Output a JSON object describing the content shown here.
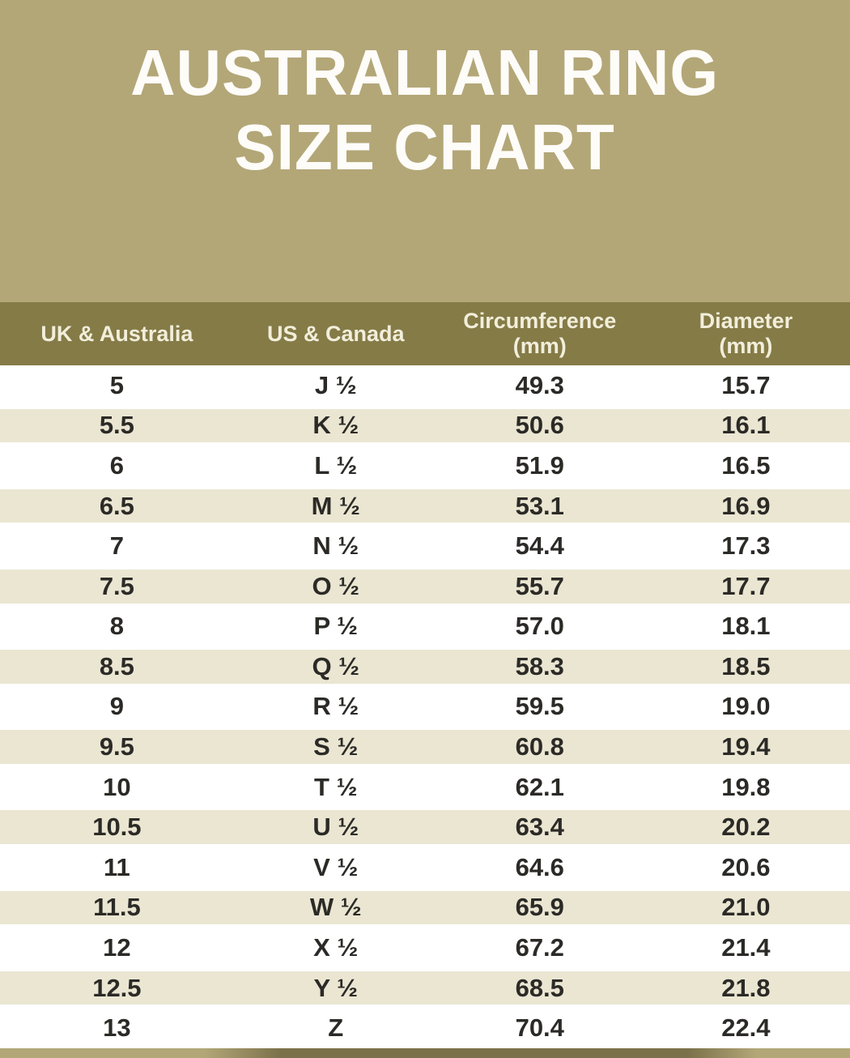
{
  "title": {
    "line1": "AUSTRALIAN RING",
    "line2": "SIZE CHART"
  },
  "colors": {
    "banner_bg": "#b3a778",
    "header_bg": "#857b47",
    "row_bg": "#ffffff",
    "row_alt_bg": "#eae6d2",
    "cell_text": "#2b2a26",
    "header_text": "#f2eedb",
    "title_text": "#fdfcf8",
    "band_dark": "#6f653a"
  },
  "chart_data": {
    "type": "table",
    "title": "AUSTRALIAN RING SIZE CHART",
    "columns": [
      {
        "label": "UK & Australia",
        "sub": ""
      },
      {
        "label": "US & Canada",
        "sub": ""
      },
      {
        "label": "Circumference",
        "sub": "(mm)"
      },
      {
        "label": "Diameter",
        "sub": "(mm)"
      }
    ],
    "rows": [
      [
        "5",
        "J ½",
        "49.3",
        "15.7"
      ],
      [
        "5.5",
        "K ½",
        "50.6",
        "16.1"
      ],
      [
        "6",
        "L ½",
        "51.9",
        "16.5"
      ],
      [
        "6.5",
        "M ½",
        "53.1",
        "16.9"
      ],
      [
        "7",
        "N ½",
        "54.4",
        "17.3"
      ],
      [
        "7.5",
        "O ½",
        "55.7",
        "17.7"
      ],
      [
        "8",
        "P ½",
        "57.0",
        "18.1"
      ],
      [
        "8.5",
        "Q ½",
        "58.3",
        "18.5"
      ],
      [
        "9",
        "R ½",
        "59.5",
        "19.0"
      ],
      [
        "9.5",
        "S ½",
        "60.8",
        "19.4"
      ],
      [
        "10",
        "T ½",
        "62.1",
        "19.8"
      ],
      [
        "10.5",
        "U ½",
        "63.4",
        "20.2"
      ],
      [
        "11",
        "V ½",
        "64.6",
        "20.6"
      ],
      [
        "11.5",
        "W ½",
        "65.9",
        "21.0"
      ],
      [
        "12",
        "X ½",
        "67.2",
        "21.4"
      ],
      [
        "12.5",
        "Y ½",
        "68.5",
        "21.8"
      ],
      [
        "13",
        "Z",
        "70.4",
        "22.4"
      ]
    ]
  }
}
